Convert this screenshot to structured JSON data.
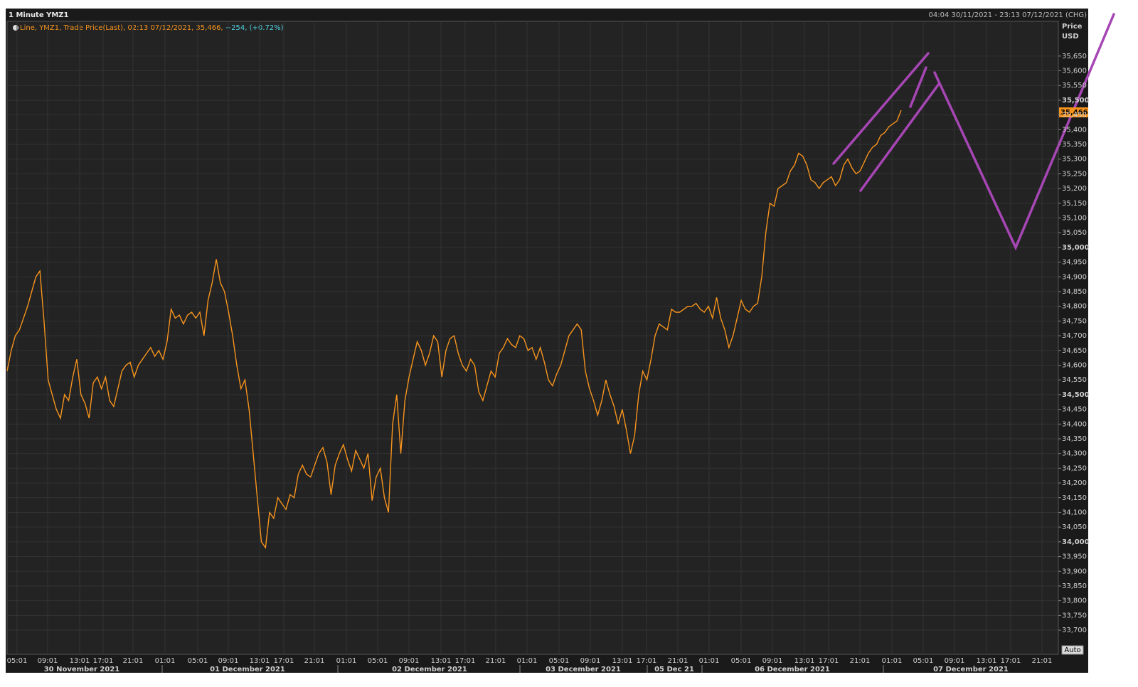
{
  "chart_data": {
    "type": "line",
    "title": "1 Minute YMZ1",
    "range_label": "04:04 30/11/2021 - 23:13 07/12/2021 (CHG)",
    "legend": {
      "text": "Line, YMZ1, Trade Price(Last), 02:13 07/12/2021, 35,466,",
      "change": "+254, (+0.72%)"
    },
    "y_axis_label": "Price",
    "y_axis_unit": "USD",
    "button": "Auto",
    "color": "#f7941d",
    "last_value_label": "35,466",
    "values": [
      34580,
      34650,
      34700,
      34720,
      34760,
      34800,
      34850,
      34900,
      34920,
      34750,
      34550,
      34500,
      34450,
      34420,
      34500,
      34480,
      34560,
      34620,
      34500,
      34470,
      34420,
      34540,
      34560,
      34520,
      34560,
      34480,
      34460,
      34520,
      34580,
      34600,
      34610,
      34560,
      34600,
      34620,
      34640,
      34660,
      34630,
      34650,
      34620,
      34680,
      34790,
      34760,
      34770,
      34740,
      34770,
      34780,
      34760,
      34780,
      34700,
      34820,
      34880,
      34960,
      34880,
      34850,
      34780,
      34700,
      34600,
      34520,
      34550,
      34450,
      34300,
      34150,
      34000,
      33980,
      34100,
      34080,
      34150,
      34130,
      34110,
      34160,
      34150,
      34230,
      34260,
      34230,
      34220,
      34260,
      34300,
      34320,
      34270,
      34160,
      34260,
      34300,
      34330,
      34280,
      34240,
      34310,
      34280,
      34250,
      34300,
      34140,
      34220,
      34250,
      34150,
      34100,
      34400,
      34500,
      34300,
      34480,
      34560,
      34620,
      34680,
      34650,
      34600,
      34640,
      34700,
      34680,
      34560,
      34650,
      34690,
      34700,
      34640,
      34600,
      34580,
      34620,
      34600,
      34510,
      34480,
      34530,
      34580,
      34560,
      34640,
      34660,
      34690,
      34670,
      34660,
      34700,
      34690,
      34650,
      34660,
      34620,
      34660,
      34610,
      34550,
      34530,
      34570,
      34600,
      34650,
      34700,
      34720,
      34740,
      34720,
      34580,
      34520,
      34480,
      34430,
      34480,
      34550,
      34500,
      34460,
      34400,
      34450,
      34380,
      34300,
      34360,
      34500,
      34580,
      34550,
      34620,
      34700,
      34740,
      34730,
      34720,
      34790,
      34780,
      34780,
      34790,
      34800,
      34800,
      34810,
      34790,
      34780,
      34800,
      34760,
      34830,
      34760,
      34720,
      34660,
      34700,
      34760,
      34820,
      34790,
      34780,
      34800,
      34810,
      34900,
      35050,
      35150,
      35140,
      35200,
      35210,
      35220,
      35260,
      35280,
      35320,
      35310,
      35280,
      35230,
      35220,
      35200,
      35220,
      35230,
      35240,
      35210,
      35230,
      35280,
      35300,
      35270,
      35250,
      35260,
      35290,
      35320,
      35340,
      35350,
      35380,
      35390,
      35410,
      35420,
      35430,
      35466
    ],
    "ylim": [
      33618,
      35768
    ],
    "yticks": [
      {
        "value": 33700,
        "label": "33,700"
      },
      {
        "value": 33750,
        "label": "33,750"
      },
      {
        "value": 33800,
        "label": "33,800"
      },
      {
        "value": 33850,
        "label": "33,850"
      },
      {
        "value": 33900,
        "label": "33,900"
      },
      {
        "value": 33950,
        "label": "33,950"
      },
      {
        "value": 34000,
        "label": "34,000"
      },
      {
        "value": 34050,
        "label": "34,050"
      },
      {
        "value": 34100,
        "label": "34,100"
      },
      {
        "value": 34150,
        "label": "34,150"
      },
      {
        "value": 34200,
        "label": "34,200"
      },
      {
        "value": 34250,
        "label": "34,250"
      },
      {
        "value": 34300,
        "label": "34,300"
      },
      {
        "value": 34350,
        "label": "34,350"
      },
      {
        "value": 34400,
        "label": "34,400"
      },
      {
        "value": 34450,
        "label": "34,450"
      },
      {
        "value": 34500,
        "label": "34,500"
      },
      {
        "value": 34550,
        "label": "34,550"
      },
      {
        "value": 34600,
        "label": "34,600"
      },
      {
        "value": 34650,
        "label": "34,650"
      },
      {
        "value": 34700,
        "label": "34,700"
      },
      {
        "value": 34750,
        "label": "34,750"
      },
      {
        "value": 34800,
        "label": "34,800"
      },
      {
        "value": 34850,
        "label": "34,850"
      },
      {
        "value": 34900,
        "label": "34,900"
      },
      {
        "value": 34950,
        "label": "34,950"
      },
      {
        "value": 35000,
        "label": "35,000"
      },
      {
        "value": 35050,
        "label": "35,050"
      },
      {
        "value": 35100,
        "label": "35,100"
      },
      {
        "value": 35150,
        "label": "35,150"
      },
      {
        "value": 35200,
        "label": "35,200"
      },
      {
        "value": 35250,
        "label": "35,250"
      },
      {
        "value": 35300,
        "label": "35,300"
      },
      {
        "value": 35350,
        "label": "35,350"
      },
      {
        "value": 35400,
        "label": "35,400"
      },
      {
        "value": 35450,
        "label": "35,450"
      },
      {
        "value": 35500,
        "label": "35,500"
      },
      {
        "value": 35550,
        "label": "35,550"
      },
      {
        "value": 35600,
        "label": "35,600"
      },
      {
        "value": 35650,
        "label": "35,650"
      }
    ],
    "grid": true,
    "x_tick_labels": [
      "05:01",
      "09:01",
      "13:01",
      "17:01",
      "21:01",
      "01:01",
      "05:01",
      "09:01",
      "13:01",
      "17:01",
      "21:01",
      "01:01",
      "05:01",
      "09:01",
      "13:01",
      "17:01",
      "21:01",
      "01:01",
      "05:01",
      "09:01",
      "13:01",
      "17:01",
      "21:01",
      "01:01",
      "05:01",
      "09:01",
      "13:01",
      "17:01",
      "21:01",
      "01:01",
      "05:01",
      "09:01",
      "13:01",
      "17:01",
      "21:01"
    ],
    "date_labels": [
      "30 November 2021",
      "01 December 2021",
      "02 December 2021",
      "03 December 2021",
      "05 Dec 21",
      "06 December 2021",
      "07 December 2021"
    ]
  }
}
